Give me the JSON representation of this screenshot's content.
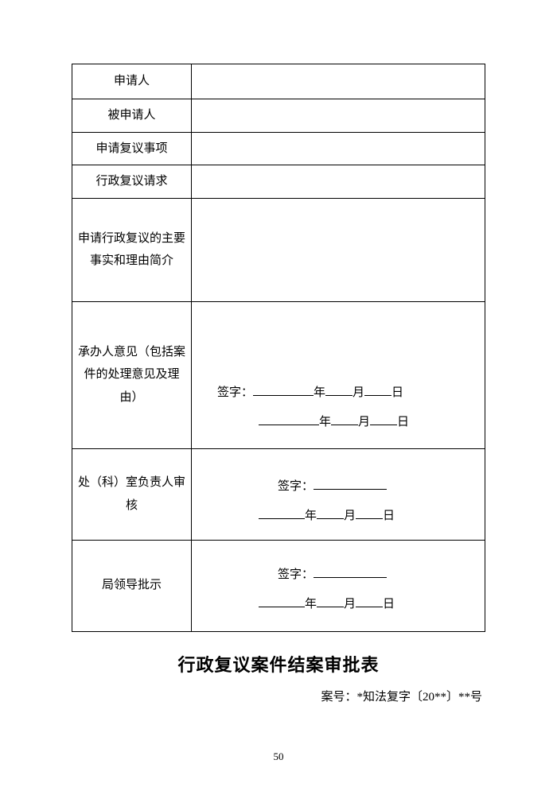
{
  "rows": {
    "applicant": "申请人",
    "respondent": "被申请人",
    "matters": "申请复议事项",
    "request": "行政复议请求",
    "facts": "申请行政复议的主要事实和理由简介",
    "handler": "承办人意见（包括案件的处理意见及理由）",
    "office": "处（科）室负责人审核",
    "leader": "局领导批示"
  },
  "signature": {
    "label": "签字：",
    "year": "年",
    "month": "月",
    "day": "日"
  },
  "title": "行政复议案件结案审批表",
  "caseNumber": "案号：*知法复字〔20**〕**号",
  "pageNumber": "50"
}
